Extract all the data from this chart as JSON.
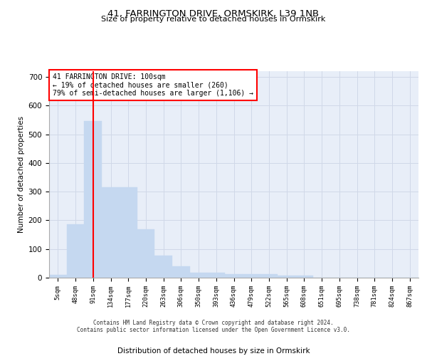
{
  "title1": "41, FARRINGTON DRIVE, ORMSKIRK, L39 1NB",
  "title2": "Size of property relative to detached houses in Ormskirk",
  "xlabel": "Distribution of detached houses by size in Ormskirk",
  "ylabel": "Number of detached properties",
  "bin_labels": [
    "5sqm",
    "48sqm",
    "91sqm",
    "134sqm",
    "177sqm",
    "220sqm",
    "263sqm",
    "306sqm",
    "350sqm",
    "393sqm",
    "436sqm",
    "479sqm",
    "522sqm",
    "565sqm",
    "608sqm",
    "651sqm",
    "695sqm",
    "738sqm",
    "781sqm",
    "824sqm",
    "867sqm"
  ],
  "bar_heights": [
    10,
    185,
    547,
    315,
    315,
    168,
    77,
    40,
    17,
    17,
    12,
    12,
    12,
    8,
    8,
    0,
    0,
    0,
    0,
    0,
    0
  ],
  "bar_color": "#c5d8f0",
  "bar_edge_color": "#c5d8f0",
  "grid_color": "#d0d8e8",
  "bg_color": "#e8eef8",
  "vline_x_index": 2,
  "vline_color": "red",
  "annotation_text": "41 FARRINGTON DRIVE: 100sqm\n← 19% of detached houses are smaller (260)\n79% of semi-detached houses are larger (1,106) →",
  "annotation_box_color": "white",
  "annotation_edge_color": "red",
  "footer1": "Contains HM Land Registry data © Crown copyright and database right 2024.",
  "footer2": "Contains public sector information licensed under the Open Government Licence v3.0.",
  "ylim": [
    0,
    720
  ],
  "yticks": [
    0,
    100,
    200,
    300,
    400,
    500,
    600,
    700
  ]
}
